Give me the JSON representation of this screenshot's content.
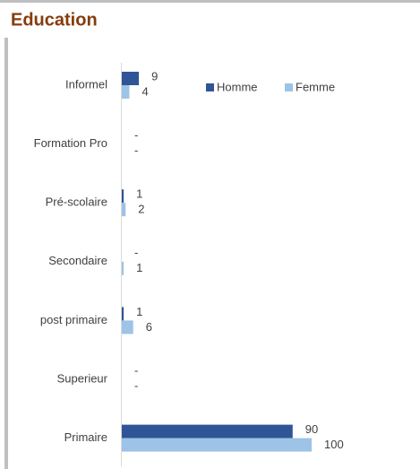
{
  "chart_data": {
    "type": "hbar",
    "title": "Education",
    "categories": [
      "Informel",
      "Formation Pro",
      "Pré-scolaire",
      "Secondaire",
      "post primaire",
      "Superieur",
      "Primaire"
    ],
    "series": [
      {
        "name": "Homme",
        "color": "#2f5597",
        "values": [
          9,
          0,
          1,
          0,
          1,
          0,
          90
        ],
        "value_labels": [
          "9",
          "-",
          "1",
          "-",
          "1",
          "-",
          "90"
        ]
      },
      {
        "name": "Femme",
        "color": "#9dc3e6",
        "values": [
          4,
          0,
          2,
          1,
          6,
          0,
          100
        ],
        "value_labels": [
          "4",
          "-",
          "2",
          "1",
          "6",
          "-",
          "100"
        ]
      }
    ],
    "legend": "top-right"
  }
}
